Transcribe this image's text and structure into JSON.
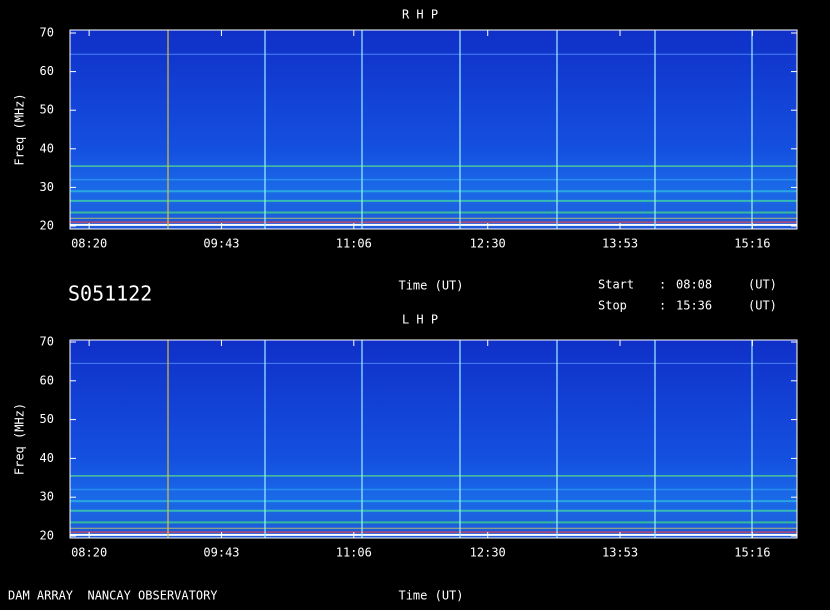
{
  "chart_data": [
    {
      "type": "spectrogram",
      "title": "R H P",
      "x_label": "Time (UT)",
      "y_label": "Freq (MHz)",
      "xlim": [
        "08:08",
        "15:44"
      ],
      "xticks": [
        "08:20",
        "09:43",
        "11:06",
        "12:30",
        "13:53",
        "15:16"
      ],
      "ylim": [
        20,
        70
      ],
      "yticks": [
        20,
        30,
        40,
        50,
        60,
        70
      ]
    },
    {
      "type": "spectrogram",
      "title": "L H P",
      "x_label": "Time (UT)",
      "y_label": "Freq (MHz)",
      "xlim": [
        "08:08",
        "15:44"
      ],
      "xticks": [
        "08:20",
        "09:43",
        "11:06",
        "12:30",
        "13:53",
        "15:16"
      ],
      "ylim": [
        20,
        70
      ],
      "yticks": [
        20,
        30,
        40,
        50,
        60,
        70
      ]
    }
  ],
  "info": {
    "id": "S051122",
    "start_label": "Start",
    "stop_label": "Stop",
    "separator": ":",
    "start": "08:08",
    "stop": "15:36",
    "unit": "(UT)",
    "footer": "DAM ARRAY  NANCAY OBSERVATORY"
  }
}
